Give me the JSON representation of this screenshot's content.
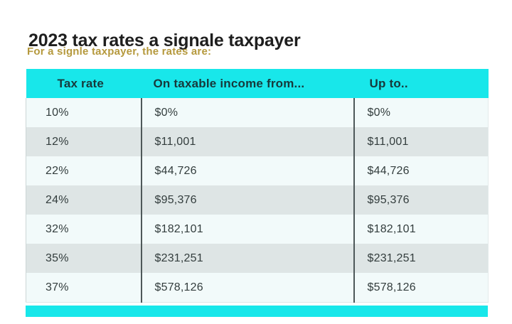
{
  "page": {
    "title": "2023 tax rates a signale taxpayer",
    "subtitle": "For a signle taxpayer, the rates are:"
  },
  "table": {
    "columns": [
      "Tax rate",
      "On taxable income from...",
      "Up to.."
    ],
    "rows": [
      [
        "10%",
        "$0%",
        "$0%"
      ],
      [
        "12%",
        "$11,001",
        "$11,001"
      ],
      [
        "22%",
        "$44,726",
        "$44,726"
      ],
      [
        "24%",
        "$95,376",
        "$95,376"
      ],
      [
        "32%",
        "$182,101",
        "$182,101"
      ],
      [
        "35%",
        "$231,251",
        "$231,251"
      ],
      [
        "37%",
        "$578,126",
        "$578,126"
      ]
    ]
  },
  "colors": {
    "accent_cyan": "#18e7ea",
    "subtitle_gold": "#b5993d",
    "title_text": "#1e1e1e",
    "header_text": "#17393b",
    "body_text": "#333d3d",
    "row_base": "#f2fafa",
    "row_alt": "#dee5e5",
    "divider": "#4e5859"
  }
}
